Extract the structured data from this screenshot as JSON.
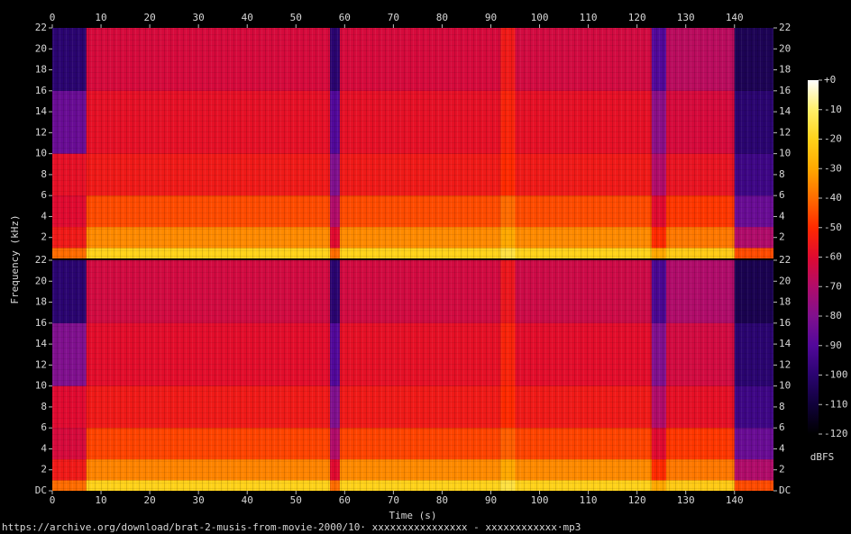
{
  "chart_data": {
    "type": "spectrogram",
    "x_label": "Time (s)",
    "y_label": "Frequency (kHz)",
    "colorbar_label": "dBFS",
    "footer": "https://archive.org/download/brat-2-musis-from-movie-2000/10· xxxxxxxxxxxxxxxx - xxxxxxxxxxxx·mp3",
    "xlim": [
      0,
      148
    ],
    "xticks": [
      0,
      10,
      20,
      30,
      40,
      50,
      60,
      70,
      80,
      90,
      100,
      110,
      120,
      130,
      140
    ],
    "ylim": [
      0,
      22
    ],
    "yticks": [
      {
        "value": 0,
        "label": "DC"
      },
      2,
      4,
      6,
      8,
      10,
      12,
      14,
      16,
      18,
      20,
      22
    ],
    "zlim": [
      -120,
      0
    ],
    "zticks": [
      {
        "value": 0,
        "label": "+0"
      },
      -10,
      -20,
      -30,
      -40,
      -50,
      -60,
      -70,
      -80,
      -90,
      -100,
      -110,
      -120
    ],
    "colors": [
      "#ffffff",
      "#fff06a",
      "#ffd21a",
      "#ffa800",
      "#ff6c00",
      "#ff2a00",
      "#e00a30",
      "#b00c6a",
      "#80108e",
      "#52089a",
      "#2a0470",
      "#10013a",
      "#000000"
    ],
    "time_edges": [
      0,
      7,
      57,
      59,
      92,
      95,
      123,
      126,
      140,
      148
    ],
    "freq_edges": [
      0,
      1,
      3,
      6,
      10,
      16,
      22
    ],
    "series": [
      {
        "values": [
          [
            -40,
            -55,
            -60,
            -58,
            -85,
            -100
          ],
          [
            -20,
            -35,
            -45,
            -55,
            -58,
            -62
          ],
          [
            -40,
            -60,
            -70,
            -80,
            -90,
            -100
          ],
          [
            -20,
            -35,
            -45,
            -55,
            -58,
            -62
          ],
          [
            -15,
            -30,
            -40,
            -50,
            -52,
            -55
          ],
          [
            -20,
            -35,
            -45,
            -55,
            -58,
            -63
          ],
          [
            -30,
            -50,
            -60,
            -70,
            -78,
            -90
          ],
          [
            -22,
            -38,
            -48,
            -57,
            -62,
            -68
          ],
          [
            -45,
            -70,
            -85,
            -95,
            -100,
            -105
          ]
        ]
      },
      {
        "values": [
          [
            -40,
            -55,
            -62,
            -60,
            -80,
            -100
          ],
          [
            -20,
            -36,
            -46,
            -55,
            -59,
            -63
          ],
          [
            -40,
            -60,
            -70,
            -80,
            -90,
            -100
          ],
          [
            -20,
            -35,
            -46,
            -55,
            -58,
            -63
          ],
          [
            -15,
            -30,
            -42,
            -50,
            -52,
            -56
          ],
          [
            -20,
            -35,
            -46,
            -55,
            -59,
            -64
          ],
          [
            -30,
            -50,
            -60,
            -70,
            -80,
            -92
          ],
          [
            -22,
            -38,
            -48,
            -58,
            -63,
            -70
          ],
          [
            -45,
            -70,
            -85,
            -95,
            -100,
            -106
          ]
        ]
      }
    ]
  }
}
